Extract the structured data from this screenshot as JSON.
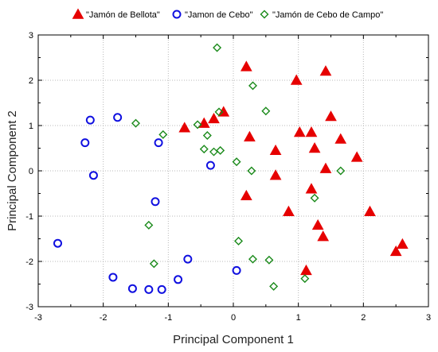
{
  "chart_data": {
    "type": "scatter",
    "xlabel": "Principal Component 1",
    "ylabel": "Principal Component 2",
    "xlim": [
      -3,
      3
    ],
    "ylim": [
      -3,
      3
    ],
    "x_ticks": [
      "-3",
      "-2",
      "-1",
      "0",
      "1",
      "2",
      "3"
    ],
    "y_ticks": [
      "-3",
      "-2",
      "-1",
      "0",
      "1",
      "2",
      "3"
    ],
    "x_minor_step": 0.5,
    "y_minor_step": 0.5,
    "grid": true,
    "legend_position": "top",
    "series": [
      {
        "name": "\"Jamón de Bellota\"",
        "marker": "filled-triangle",
        "color": "#e60000",
        "points": [
          [
            0.2,
            2.3
          ],
          [
            0.97,
            2.0
          ],
          [
            1.42,
            2.2
          ],
          [
            -0.3,
            1.15
          ],
          [
            -0.15,
            1.3
          ],
          [
            -0.45,
            1.05
          ],
          [
            -0.75,
            0.95
          ],
          [
            1.5,
            1.2
          ],
          [
            1.2,
            0.85
          ],
          [
            0.25,
            0.75
          ],
          [
            1.02,
            0.85
          ],
          [
            1.65,
            0.7
          ],
          [
            0.65,
            0.45
          ],
          [
            1.25,
            0.5
          ],
          [
            1.9,
            0.3
          ],
          [
            1.42,
            0.05
          ],
          [
            0.65,
            -0.1
          ],
          [
            1.2,
            -0.4
          ],
          [
            0.2,
            -0.55
          ],
          [
            2.1,
            -0.9
          ],
          [
            1.3,
            -1.2
          ],
          [
            0.85,
            -0.9
          ],
          [
            1.38,
            -1.45
          ],
          [
            1.12,
            -2.2
          ],
          [
            2.6,
            -1.62
          ],
          [
            2.5,
            -1.78
          ]
        ]
      },
      {
        "name": "\"Jamon de Cebo\"",
        "marker": "open-circle",
        "color": "#1010e0",
        "points": [
          [
            -1.78,
            1.18
          ],
          [
            -2.2,
            1.12
          ],
          [
            -2.28,
            0.62
          ],
          [
            -1.15,
            0.62
          ],
          [
            -0.35,
            0.12
          ],
          [
            -2.15,
            -0.1
          ],
          [
            -1.2,
            -0.68
          ],
          [
            -2.7,
            -1.6
          ],
          [
            -1.85,
            -2.35
          ],
          [
            -1.55,
            -2.6
          ],
          [
            -0.7,
            -1.95
          ],
          [
            -0.85,
            -2.4
          ],
          [
            0.05,
            -2.2
          ],
          [
            -1.3,
            -2.62
          ],
          [
            -1.1,
            -2.62
          ]
        ]
      },
      {
        "name": "\"Jamón de Cebo de Campo\"",
        "marker": "open-diamond",
        "color": "#1a8a1a",
        "points": [
          [
            -0.25,
            2.72
          ],
          [
            0.3,
            1.88
          ],
          [
            -1.5,
            1.05
          ],
          [
            -0.4,
            0.78
          ],
          [
            0.5,
            1.32
          ],
          [
            -0.55,
            1.02
          ],
          [
            -1.08,
            0.8
          ],
          [
            -0.22,
            1.3
          ],
          [
            -0.2,
            0.45
          ],
          [
            -0.3,
            0.42
          ],
          [
            -0.45,
            0.48
          ],
          [
            0.05,
            0.2
          ],
          [
            0.28,
            0.0
          ],
          [
            1.65,
            0.0
          ],
          [
            1.25,
            -0.6
          ],
          [
            -1.3,
            -1.2
          ],
          [
            0.08,
            -1.55
          ],
          [
            0.3,
            -1.95
          ],
          [
            0.55,
            -1.97
          ],
          [
            -1.22,
            -2.05
          ],
          [
            1.1,
            -2.38
          ],
          [
            0.62,
            -2.55
          ]
        ]
      }
    ]
  }
}
